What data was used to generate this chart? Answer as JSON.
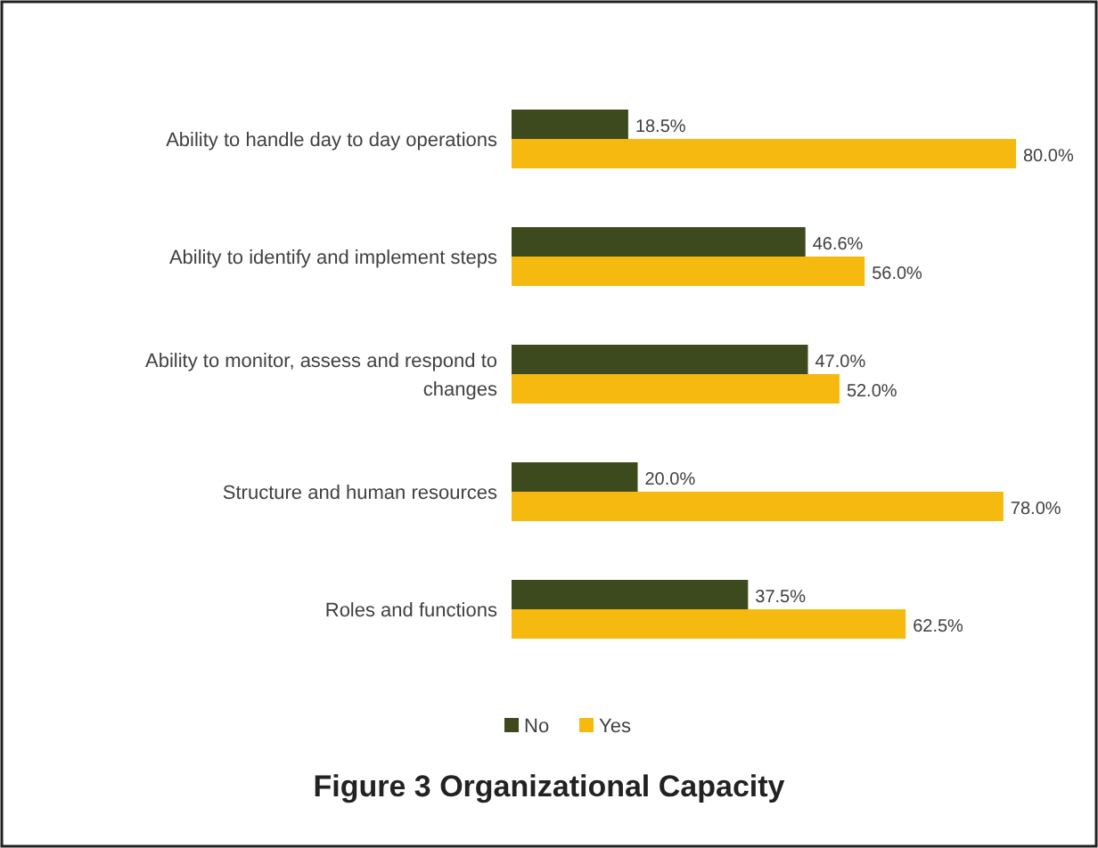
{
  "chart_data": {
    "type": "bar",
    "orientation": "horizontal",
    "title": "Figure 3 Organizational Capacity",
    "categories": [
      "Ability to handle day to day operations",
      "Ability to identify and implement steps",
      "Ability to monitor, assess and respond to changes",
      "Structure and human resources",
      "Roles and functions"
    ],
    "series": [
      {
        "name": "No",
        "color": "#3d4a1e",
        "values": [
          18.5,
          46.6,
          47.0,
          20.0,
          37.5
        ],
        "value_labels": [
          "18.5%",
          "46.6%",
          "47.0%",
          "20.0%",
          "37.5%"
        ]
      },
      {
        "name": "Yes",
        "color": "#f5b90f",
        "values": [
          80.0,
          56.0,
          52.0,
          78.0,
          62.5
        ],
        "value_labels": [
          "80.0%",
          "56.0%",
          "52.0%",
          "78.0%",
          "62.5%"
        ]
      }
    ],
    "legend": "bottom"
  }
}
